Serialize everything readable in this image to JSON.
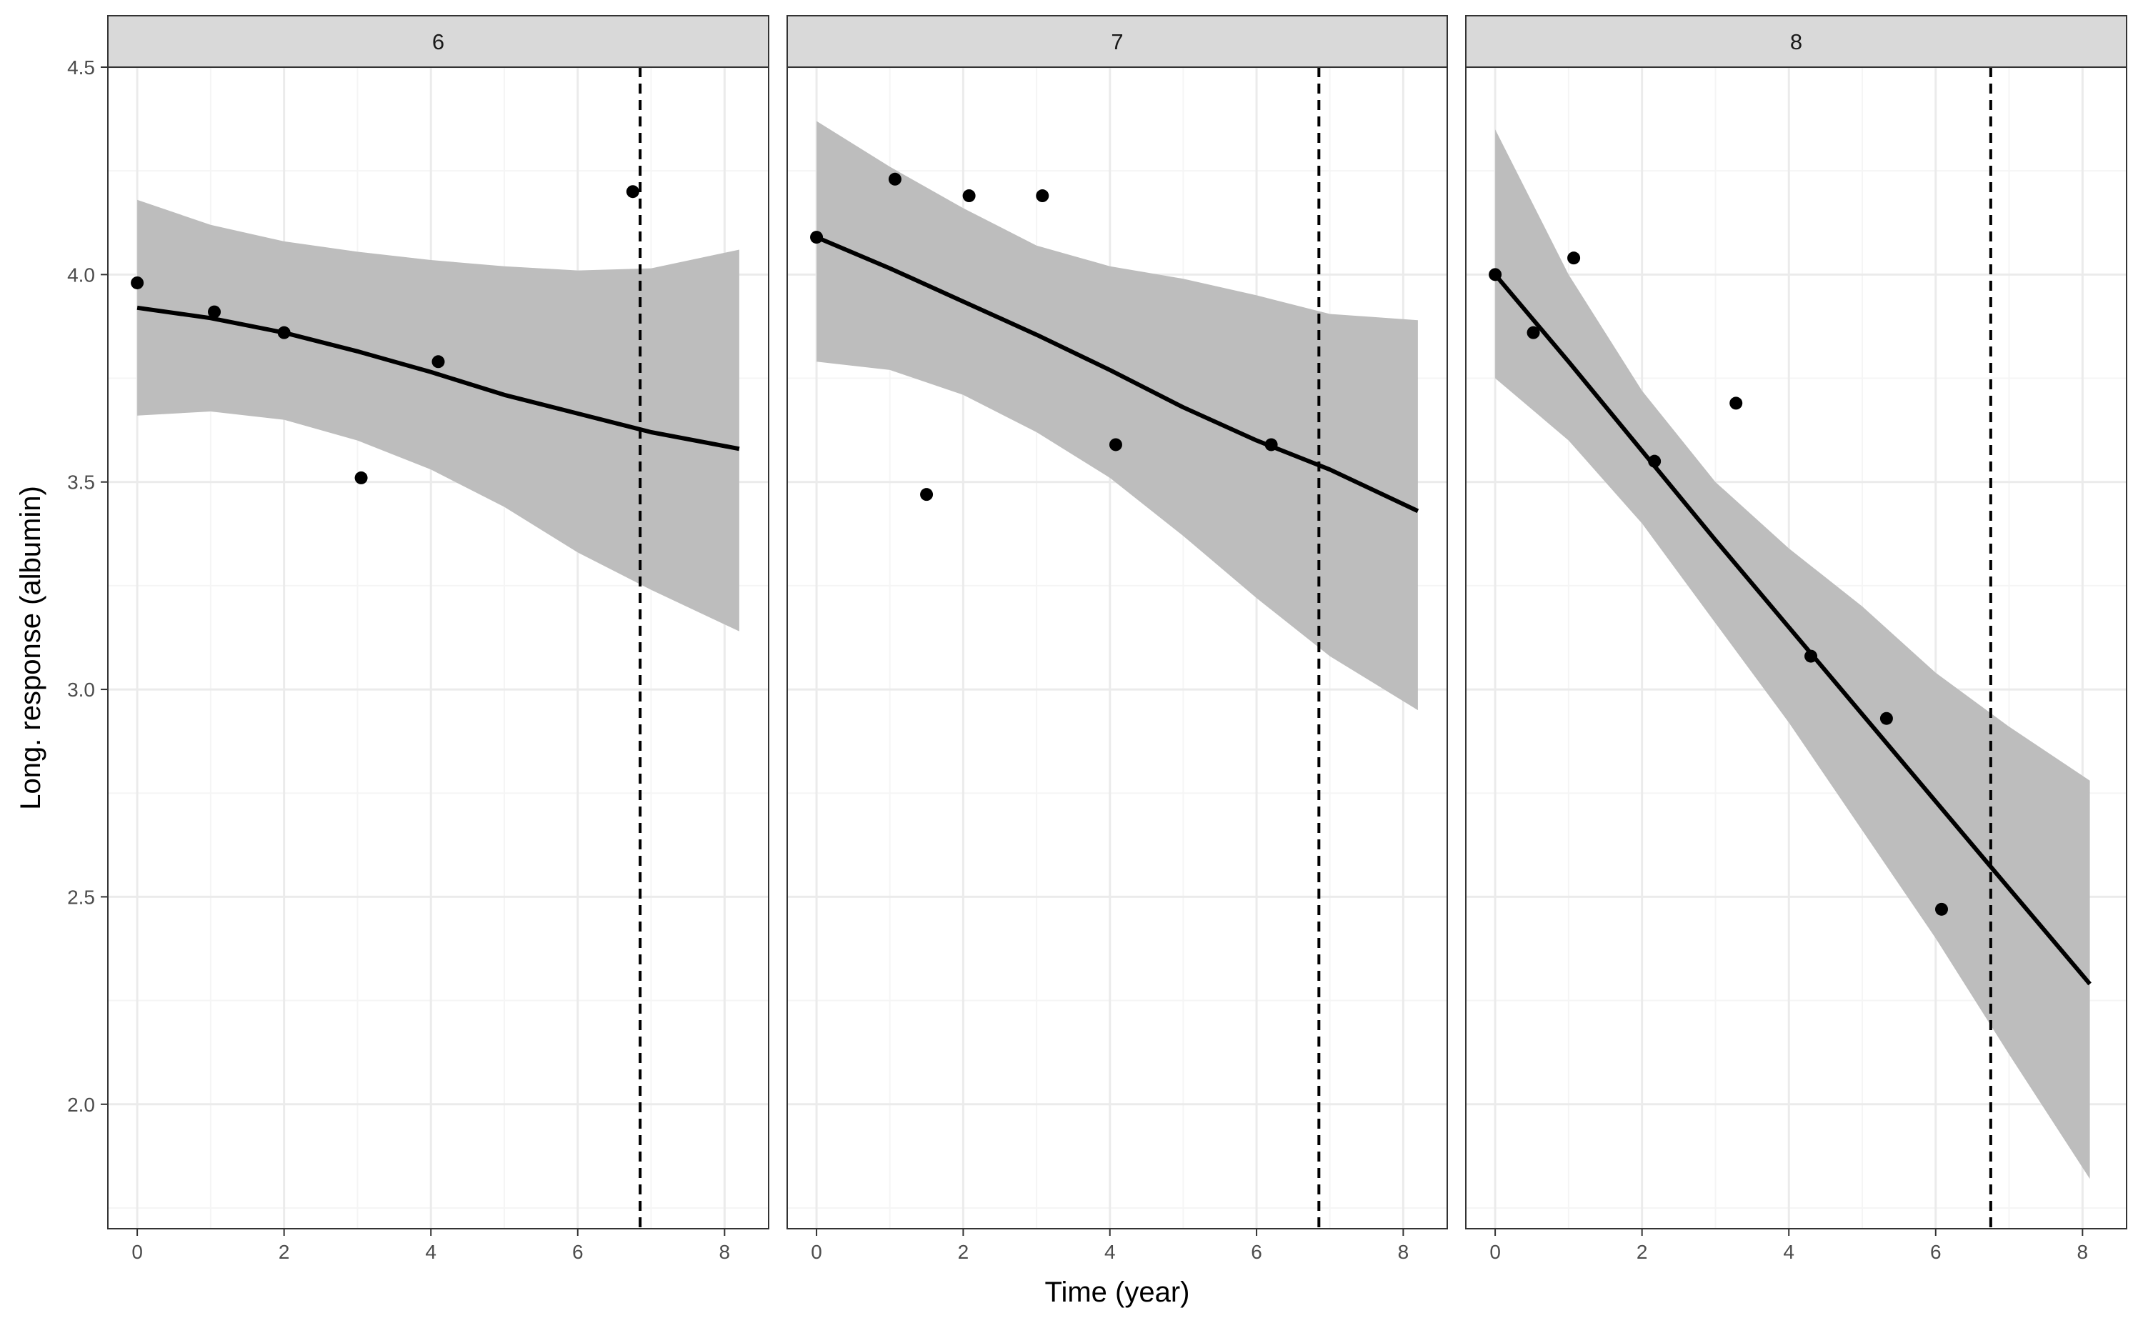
{
  "chart_data": {
    "type": "scatter",
    "title": "",
    "xlabel": "Time (year)",
    "ylabel": "Long. response (albumin)",
    "xlim": [
      -0.4,
      8.6
    ],
    "ylim": [
      1.7,
      4.5
    ],
    "x_ticks": [
      0,
      2,
      4,
      6,
      8
    ],
    "y_ticks": [
      2.0,
      2.5,
      3.0,
      3.5,
      4.0,
      4.5
    ],
    "y_tick_labels": [
      "2.0",
      "2.5",
      "3.0",
      "3.5",
      "4.0",
      "4.5"
    ],
    "grid": true,
    "facets": [
      {
        "label": "6",
        "points": [
          {
            "x": 0.0,
            "y": 3.98
          },
          {
            "x": 1.05,
            "y": 3.91
          },
          {
            "x": 2.0,
            "y": 3.86
          },
          {
            "x": 3.05,
            "y": 3.51
          },
          {
            "x": 4.1,
            "y": 3.79
          },
          {
            "x": 6.75,
            "y": 4.2
          }
        ],
        "fit": [
          {
            "x": 0.0,
            "y": 3.92
          },
          {
            "x": 1.0,
            "y": 3.895
          },
          {
            "x": 2.0,
            "y": 3.86
          },
          {
            "x": 3.0,
            "y": 3.815
          },
          {
            "x": 4.0,
            "y": 3.765
          },
          {
            "x": 5.0,
            "y": 3.71
          },
          {
            "x": 6.0,
            "y": 3.665
          },
          {
            "x": 7.0,
            "y": 3.62
          },
          {
            "x": 8.2,
            "y": 3.58
          }
        ],
        "band_upper": [
          {
            "x": 0.0,
            "y": 4.18
          },
          {
            "x": 1.0,
            "y": 4.12
          },
          {
            "x": 2.0,
            "y": 4.08
          },
          {
            "x": 3.0,
            "y": 4.055
          },
          {
            "x": 4.0,
            "y": 4.035
          },
          {
            "x": 5.0,
            "y": 4.02
          },
          {
            "x": 6.0,
            "y": 4.01
          },
          {
            "x": 7.0,
            "y": 4.015
          },
          {
            "x": 8.2,
            "y": 4.06
          }
        ],
        "band_lower": [
          {
            "x": 0.0,
            "y": 3.66
          },
          {
            "x": 1.0,
            "y": 3.67
          },
          {
            "x": 2.0,
            "y": 3.65
          },
          {
            "x": 3.0,
            "y": 3.6
          },
          {
            "x": 4.0,
            "y": 3.53
          },
          {
            "x": 5.0,
            "y": 3.44
          },
          {
            "x": 6.0,
            "y": 3.33
          },
          {
            "x": 7.0,
            "y": 3.24
          },
          {
            "x": 8.2,
            "y": 3.14
          }
        ],
        "vline_x": 6.85
      },
      {
        "label": "7",
        "points": [
          {
            "x": 0.0,
            "y": 4.09
          },
          {
            "x": 1.07,
            "y": 4.23
          },
          {
            "x": 1.5,
            "y": 3.47
          },
          {
            "x": 2.08,
            "y": 4.19
          },
          {
            "x": 3.08,
            "y": 4.19
          },
          {
            "x": 4.08,
            "y": 3.59
          },
          {
            "x": 6.2,
            "y": 3.59
          }
        ],
        "fit": [
          {
            "x": 0.0,
            "y": 4.09
          },
          {
            "x": 1.0,
            "y": 4.015
          },
          {
            "x": 2.0,
            "y": 3.935
          },
          {
            "x": 3.0,
            "y": 3.855
          },
          {
            "x": 4.0,
            "y": 3.77
          },
          {
            "x": 5.0,
            "y": 3.68
          },
          {
            "x": 6.0,
            "y": 3.6
          },
          {
            "x": 7.0,
            "y": 3.53
          },
          {
            "x": 8.2,
            "y": 3.43
          }
        ],
        "band_upper": [
          {
            "x": 0.0,
            "y": 4.37
          },
          {
            "x": 1.0,
            "y": 4.26
          },
          {
            "x": 2.0,
            "y": 4.16
          },
          {
            "x": 3.0,
            "y": 4.07
          },
          {
            "x": 4.0,
            "y": 4.02
          },
          {
            "x": 5.0,
            "y": 3.99
          },
          {
            "x": 6.0,
            "y": 3.95
          },
          {
            "x": 7.0,
            "y": 3.905
          },
          {
            "x": 8.2,
            "y": 3.89
          }
        ],
        "band_lower": [
          {
            "x": 0.0,
            "y": 3.79
          },
          {
            "x": 1.0,
            "y": 3.77
          },
          {
            "x": 2.0,
            "y": 3.71
          },
          {
            "x": 3.0,
            "y": 3.62
          },
          {
            "x": 4.0,
            "y": 3.51
          },
          {
            "x": 5.0,
            "y": 3.37
          },
          {
            "x": 6.0,
            "y": 3.22
          },
          {
            "x": 7.0,
            "y": 3.08
          },
          {
            "x": 8.2,
            "y": 2.95
          }
        ],
        "vline_x": 6.85
      },
      {
        "label": "8",
        "points": [
          {
            "x": 0.0,
            "y": 4.0
          },
          {
            "x": 0.52,
            "y": 3.86
          },
          {
            "x": 1.07,
            "y": 4.04
          },
          {
            "x": 2.17,
            "y": 3.55
          },
          {
            "x": 3.28,
            "y": 3.69
          },
          {
            "x": 4.3,
            "y": 3.08
          },
          {
            "x": 5.33,
            "y": 2.93
          },
          {
            "x": 6.08,
            "y": 2.47
          }
        ],
        "fit": [
          {
            "x": 0.0,
            "y": 4.0
          },
          {
            "x": 1.0,
            "y": 3.79
          },
          {
            "x": 2.0,
            "y": 3.575
          },
          {
            "x": 3.0,
            "y": 3.36
          },
          {
            "x": 4.0,
            "y": 3.15
          },
          {
            "x": 5.0,
            "y": 2.94
          },
          {
            "x": 6.0,
            "y": 2.73
          },
          {
            "x": 7.0,
            "y": 2.52
          },
          {
            "x": 8.1,
            "y": 2.29
          }
        ],
        "band_upper": [
          {
            "x": 0.0,
            "y": 4.35
          },
          {
            "x": 1.0,
            "y": 4.0
          },
          {
            "x": 2.0,
            "y": 3.72
          },
          {
            "x": 3.0,
            "y": 3.5
          },
          {
            "x": 4.0,
            "y": 3.34
          },
          {
            "x": 5.0,
            "y": 3.2
          },
          {
            "x": 6.0,
            "y": 3.04
          },
          {
            "x": 7.0,
            "y": 2.91
          },
          {
            "x": 8.1,
            "y": 2.78
          }
        ],
        "band_lower": [
          {
            "x": 0.0,
            "y": 3.75
          },
          {
            "x": 1.0,
            "y": 3.6
          },
          {
            "x": 2.0,
            "y": 3.4
          },
          {
            "x": 3.0,
            "y": 3.16
          },
          {
            "x": 4.0,
            "y": 2.92
          },
          {
            "x": 5.0,
            "y": 2.66
          },
          {
            "x": 6.0,
            "y": 2.4
          },
          {
            "x": 7.0,
            "y": 2.12
          },
          {
            "x": 8.1,
            "y": 1.82
          }
        ],
        "vline_x": 6.75
      }
    ]
  },
  "colors": {
    "point": "#000000",
    "fit_line": "#000000",
    "band": "#bdbdbd",
    "strip": "#d9d9d9",
    "grid_major": "#ebebeb",
    "grid_minor": "#f5f5f5",
    "axis_text": "#4d4d4d",
    "panel_border": "#333333"
  }
}
